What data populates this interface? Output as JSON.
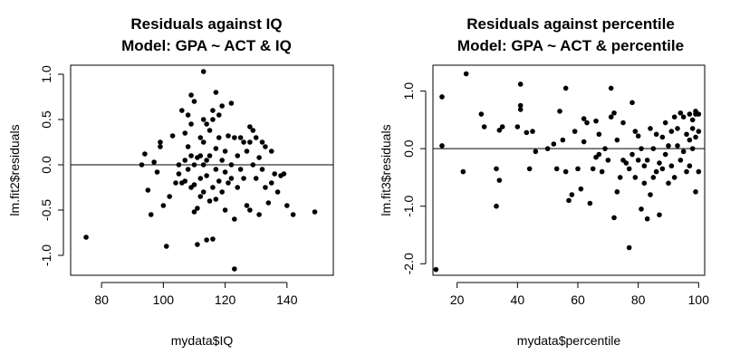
{
  "chart_data": [
    {
      "type": "scatter",
      "title": "Residuals against IQ",
      "subtitle": "Model: GPA ~ ACT & IQ",
      "xlabel": "mydata$IQ",
      "ylabel": "lm.fit2$residuals",
      "xlim": [
        70,
        155
      ],
      "ylim": [
        -1.22,
        1.1
      ],
      "xticks": [
        80,
        100,
        120,
        140
      ],
      "yticks": [
        -1.0,
        -0.5,
        0.0,
        0.5,
        1.0
      ],
      "xtick_labels": [
        "80",
        "100",
        "120",
        "140"
      ],
      "ytick_labels": [
        "-1.0",
        "-0.5",
        "0.0",
        "0.5",
        "1.0"
      ],
      "hline": 0,
      "color": "#000000",
      "points": [
        [
          75,
          -0.8
        ],
        [
          93,
          0.0
        ],
        [
          94,
          0.12
        ],
        [
          95,
          -0.28
        ],
        [
          96,
          -0.55
        ],
        [
          97,
          0.03
        ],
        [
          98,
          -0.08
        ],
        [
          99,
          0.2
        ],
        [
          99,
          0.25
        ],
        [
          100,
          -0.45
        ],
        [
          101,
          -0.9
        ],
        [
          102,
          -0.35
        ],
        [
          103,
          0.32
        ],
        [
          104,
          -0.2
        ],
        [
          105,
          0.0
        ],
        [
          105,
          -0.1
        ],
        [
          106,
          0.6
        ],
        [
          106,
          -0.2
        ],
        [
          107,
          0.35
        ],
        [
          107,
          0.05
        ],
        [
          107,
          -0.18
        ],
        [
          108,
          0.55
        ],
        [
          108,
          0.2
        ],
        [
          108,
          -0.05
        ],
        [
          109,
          0.77
        ],
        [
          109,
          0.45
        ],
        [
          109,
          0.1
        ],
        [
          109,
          -0.25
        ],
        [
          110,
          0.0
        ],
        [
          110,
          -0.52
        ],
        [
          110,
          0.7
        ],
        [
          110,
          -0.22
        ],
        [
          111,
          0.08
        ],
        [
          111,
          -0.48
        ],
        [
          111,
          -0.88
        ],
        [
          112,
          0.3
        ],
        [
          112,
          -0.15
        ],
        [
          112,
          0.1
        ],
        [
          112,
          -0.35
        ],
        [
          113,
          1.03
        ],
        [
          113,
          0.5
        ],
        [
          113,
          0.0
        ],
        [
          113,
          -0.3
        ],
        [
          113,
          0.25
        ],
        [
          114,
          0.45
        ],
        [
          114,
          -0.12
        ],
        [
          114,
          -0.83
        ],
        [
          114,
          0.05
        ],
        [
          115,
          0.38
        ],
        [
          115,
          0.1
        ],
        [
          115,
          -0.4
        ],
        [
          116,
          0.6
        ],
        [
          116,
          -0.25
        ],
        [
          116,
          0.5
        ],
        [
          116,
          -0.82
        ],
        [
          117,
          0.8
        ],
        [
          117,
          -0.05
        ],
        [
          117,
          0.18
        ],
        [
          117,
          -0.38
        ],
        [
          118,
          0.55
        ],
        [
          118,
          0.3
        ],
        [
          118,
          -0.18
        ],
        [
          119,
          0.65
        ],
        [
          119,
          0.05
        ],
        [
          119,
          -0.3
        ],
        [
          120,
          0.15
        ],
        [
          120,
          -0.5
        ],
        [
          120,
          -0.08
        ],
        [
          121,
          0.32
        ],
        [
          121,
          -0.2
        ],
        [
          122,
          0.68
        ],
        [
          122,
          0.0
        ],
        [
          122,
          -0.15
        ],
        [
          123,
          -1.15
        ],
        [
          123,
          0.3
        ],
        [
          123,
          -0.6
        ],
        [
          124,
          0.1
        ],
        [
          124,
          -0.25
        ],
        [
          125,
          0.3
        ],
        [
          125,
          -0.05
        ],
        [
          126,
          0.25
        ],
        [
          126,
          -0.15
        ],
        [
          127,
          0.15
        ],
        [
          127,
          -0.45
        ],
        [
          128,
          0.42
        ],
        [
          128,
          -0.5
        ],
        [
          128,
          0.25
        ],
        [
          129,
          0.38
        ],
        [
          129,
          0.0
        ],
        [
          130,
          0.3
        ],
        [
          130,
          -0.15
        ],
        [
          131,
          -0.55
        ],
        [
          131,
          0.08
        ],
        [
          132,
          0.25
        ],
        [
          132,
          -0.05
        ],
        [
          133,
          0.2
        ],
        [
          133,
          -0.25
        ],
        [
          134,
          -0.42
        ],
        [
          135,
          0.15
        ],
        [
          135,
          -0.2
        ],
        [
          136,
          -0.1
        ],
        [
          137,
          -0.3
        ],
        [
          138,
          -0.12
        ],
        [
          139,
          -0.1
        ],
        [
          140,
          -0.45
        ],
        [
          142,
          -0.55
        ],
        [
          149,
          -0.52
        ]
      ]
    },
    {
      "type": "scatter",
      "title": "Residuals against percentile",
      "subtitle": "Model: GPA ~ ACT & percentile",
      "xlabel": "mydata$percentile",
      "ylabel": "lm.fit3$residuals",
      "xlim": [
        12,
        102
      ],
      "ylim": [
        -2.2,
        1.45
      ],
      "xticks": [
        20,
        40,
        60,
        80,
        100
      ],
      "yticks": [
        -2.0,
        -1.0,
        0.0,
        1.0
      ],
      "xtick_labels": [
        "20",
        "40",
        "60",
        "80",
        "100"
      ],
      "ytick_labels": [
        "-2.0",
        "-1.0",
        "0.0",
        "1.0"
      ],
      "hline": 0,
      "color": "#000000",
      "points": [
        [
          13,
          -2.1
        ],
        [
          15,
          0.9
        ],
        [
          15,
          0.05
        ],
        [
          22,
          -0.4
        ],
        [
          23,
          1.3
        ],
        [
          28,
          0.6
        ],
        [
          29,
          0.38
        ],
        [
          33,
          -0.35
        ],
        [
          33,
          -1.0
        ],
        [
          34,
          0.32
        ],
        [
          34,
          -0.55
        ],
        [
          35,
          0.38
        ],
        [
          40,
          0.38
        ],
        [
          41,
          1.12
        ],
        [
          41,
          0.75
        ],
        [
          41,
          0.68
        ],
        [
          43,
          0.28
        ],
        [
          44,
          -0.35
        ],
        [
          45,
          0.3
        ],
        [
          46,
          -0.05
        ],
        [
          50,
          0.0
        ],
        [
          52,
          0.08
        ],
        [
          53,
          -0.35
        ],
        [
          54,
          0.65
        ],
        [
          55,
          0.15
        ],
        [
          56,
          1.05
        ],
        [
          56,
          -0.4
        ],
        [
          57,
          -0.9
        ],
        [
          58,
          -0.8
        ],
        [
          59,
          0.3
        ],
        [
          60,
          -0.35
        ],
        [
          61,
          -0.7
        ],
        [
          62,
          0.52
        ],
        [
          62,
          0.12
        ],
        [
          63,
          0.45
        ],
        [
          64,
          -0.95
        ],
        [
          65,
          -0.35
        ],
        [
          66,
          -0.15
        ],
        [
          66,
          0.48
        ],
        [
          67,
          0.25
        ],
        [
          67,
          -0.1
        ],
        [
          68,
          -0.4
        ],
        [
          69,
          0.0
        ],
        [
          70,
          -0.2
        ],
        [
          71,
          1.05
        ],
        [
          71,
          0.55
        ],
        [
          72,
          -1.2
        ],
        [
          72,
          0.62
        ],
        [
          73,
          0.15
        ],
        [
          73,
          -0.75
        ],
        [
          74,
          -0.5
        ],
        [
          75,
          -0.2
        ],
        [
          75,
          0.45
        ],
        [
          76,
          -0.25
        ],
        [
          77,
          -1.72
        ],
        [
          77,
          -0.35
        ],
        [
          78,
          -0.1
        ],
        [
          78,
          0.8
        ],
        [
          79,
          -0.5
        ],
        [
          79,
          0.3
        ],
        [
          80,
          -0.2
        ],
        [
          80,
          0.22
        ],
        [
          81,
          -1.05
        ],
        [
          81,
          0.0
        ],
        [
          82,
          -0.6
        ],
        [
          82,
          -0.3
        ],
        [
          83,
          -1.22
        ],
        [
          83,
          -0.2
        ],
        [
          84,
          -0.8
        ],
        [
          84,
          0.35
        ],
        [
          85,
          -0.5
        ],
        [
          85,
          0.0
        ],
        [
          86,
          -0.4
        ],
        [
          86,
          0.25
        ],
        [
          87,
          -1.15
        ],
        [
          87,
          -0.25
        ],
        [
          88,
          0.2
        ],
        [
          88,
          -0.35
        ],
        [
          89,
          -0.1
        ],
        [
          89,
          0.45
        ],
        [
          90,
          -0.6
        ],
        [
          90,
          0.05
        ],
        [
          91,
          -0.3
        ],
        [
          91,
          0.3
        ],
        [
          92,
          0.55
        ],
        [
          92,
          -0.5
        ],
        [
          93,
          0.05
        ],
        [
          93,
          0.35
        ],
        [
          94,
          -0.2
        ],
        [
          94,
          0.62
        ],
        [
          95,
          -0.05
        ],
        [
          95,
          0.55
        ],
        [
          96,
          0.25
        ],
        [
          96,
          -0.4
        ],
        [
          97,
          0.6
        ],
        [
          97,
          0.15
        ],
        [
          97,
          -0.3
        ],
        [
          98,
          0.5
        ],
        [
          98,
          0.35
        ],
        [
          98,
          0.0
        ],
        [
          99,
          0.65
        ],
        [
          99,
          0.6
        ],
        [
          99,
          0.2
        ],
        [
          99,
          -0.75
        ],
        [
          100,
          0.6
        ],
        [
          100,
          0.3
        ],
        [
          100,
          -0.4
        ]
      ]
    }
  ]
}
